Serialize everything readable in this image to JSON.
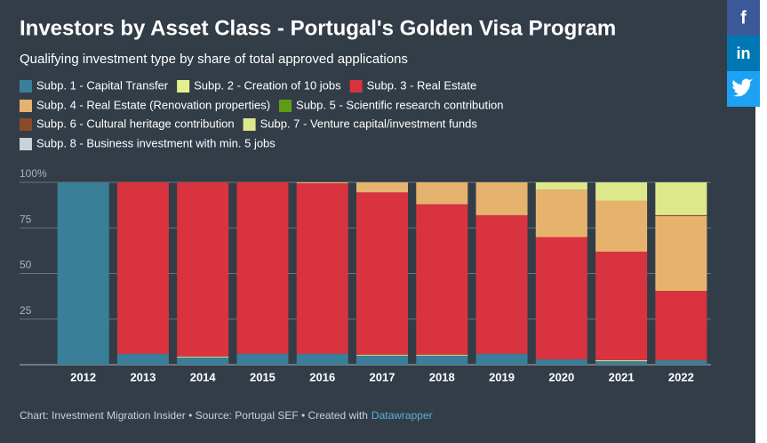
{
  "chart_data": {
    "type": "stacked_bar",
    "title": "Investors by Asset Class  - Portugal's Golden Visa Program",
    "subtitle": "Qualifying investment type by share of total approved applications",
    "categories": [
      "2012",
      "2013",
      "2014",
      "2015",
      "2016",
      "2017",
      "2018",
      "2019",
      "2020",
      "2021",
      "2022"
    ],
    "series": [
      {
        "name": "Subp. 1 - Capital Transfer",
        "color": "#3a7f99",
        "values": [
          100,
          6,
          4,
          6,
          6,
          5,
          5,
          6,
          3,
          2,
          2.5
        ]
      },
      {
        "name": "Subp. 2 - Creation of 10 jobs",
        "color": "#e4ef8e",
        "values": [
          0,
          0,
          0.5,
          0,
          0,
          0.5,
          0.5,
          0,
          0,
          0.5,
          0
        ]
      },
      {
        "name": "Subp. 3 - Real Estate",
        "color": "#d8333f",
        "values": [
          0,
          94,
          95.5,
          94,
          93.5,
          89,
          82.5,
          76,
          67,
          59.5,
          38
        ]
      },
      {
        "name": "Subp. 4 - Real Estate (Renovation properties)",
        "color": "#e6b36f",
        "values": [
          0,
          0,
          0,
          0,
          0.5,
          5.5,
          12,
          18,
          26,
          28,
          41
        ]
      },
      {
        "name": "Subp. 5 - Scientific research contribution",
        "color": "#5e9c14",
        "values": [
          0,
          0,
          0,
          0,
          0,
          0,
          0,
          0,
          0,
          0,
          0
        ]
      },
      {
        "name": "Subp. 6 - Cultural heritage contribution",
        "color": "#8b4a2b",
        "values": [
          0,
          0,
          0,
          0,
          0,
          0,
          0,
          0,
          0,
          0,
          0.5
        ]
      },
      {
        "name": "Subp. 7 - Venture capital/investment funds",
        "color": "#dde88a",
        "values": [
          0,
          0,
          0,
          0,
          0,
          0,
          0,
          0,
          4,
          10,
          18
        ]
      },
      {
        "name": "Subp. 8 - Business investment with min. 5 jobs",
        "color": "#c8d2d9",
        "values": [
          0,
          0,
          0,
          0,
          0,
          0,
          0,
          0,
          0,
          0,
          0
        ]
      }
    ],
    "ylim": [
      0,
      100
    ],
    "yticks": [
      25,
      50,
      75,
      {
        "value": 100,
        "label": "100%"
      }
    ],
    "grid": true,
    "source": "Chart: Investment Migration Insider • Source: Portugal SEF • Created with",
    "source_link": "Datawrapper"
  },
  "share_buttons": [
    "f",
    "in"
  ]
}
